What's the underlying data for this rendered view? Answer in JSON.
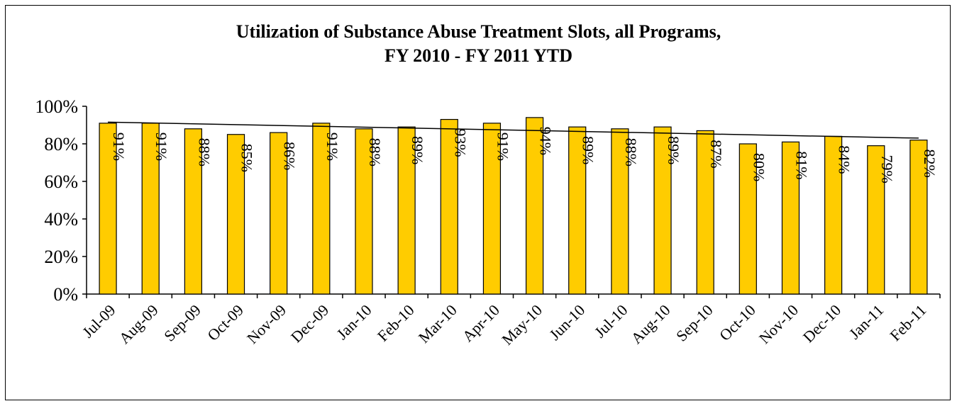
{
  "chart_data": {
    "type": "bar",
    "title_line1": "Utilization of Substance Abuse Treatment Slots, all Programs,",
    "title_line2": "FY 2010 - FY 2011 YTD",
    "categories": [
      "Jul-09",
      "Aug-09",
      "Sep-09",
      "Oct-09",
      "Nov-09",
      "Dec-09",
      "Jan-10",
      "Feb-10",
      "Mar-10",
      "Apr-10",
      "May-10",
      "Jun-10",
      "Jul-10",
      "Aug-10",
      "Sep-10",
      "Oct-10",
      "Nov-10",
      "Dec-10",
      "Jan-11",
      "Feb-11"
    ],
    "values": [
      91,
      91,
      88,
      85,
      86,
      91,
      88,
      89,
      93,
      91,
      94,
      89,
      88,
      89,
      87,
      80,
      81,
      84,
      79,
      82
    ],
    "data_labels": [
      "91%",
      "91%",
      "88%",
      "85%",
      "86%",
      "91%",
      "88%",
      "89%",
      "93%",
      "91%",
      "94%",
      "89%",
      "88%",
      "89%",
      "87%",
      "80%",
      "81%",
      "84%",
      "79%",
      "82%"
    ],
    "yticks": [
      "0%",
      "20%",
      "40%",
      "60%",
      "80%",
      "100%"
    ],
    "ylim": [
      0,
      100
    ],
    "trendline": true,
    "legend": "none",
    "grid": false,
    "colors": {
      "bar": "#FFCC00",
      "bar_stroke": "#000000",
      "trendline": "#000000"
    }
  }
}
